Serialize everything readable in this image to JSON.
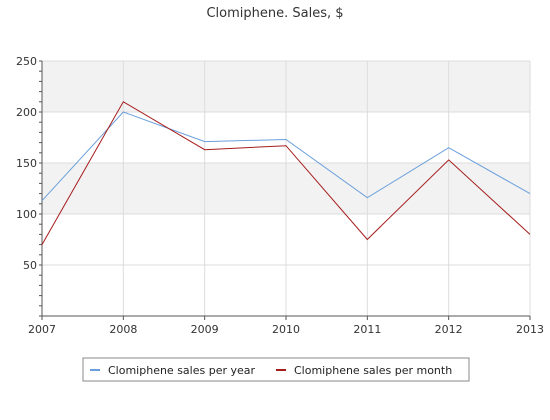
{
  "chart_data": {
    "type": "line",
    "title": "Clomiphene. Sales, $",
    "xlabel": "",
    "ylabel": "",
    "categories": [
      "2007",
      "2008",
      "2009",
      "2010",
      "2011",
      "2012",
      "2013"
    ],
    "ylim": [
      0,
      250
    ],
    "yticks": [
      "50",
      "100",
      "150",
      "200",
      "250"
    ],
    "grid": true,
    "legend_position": "bottom-center",
    "series": [
      {
        "name": "Clomiphene sales per year",
        "color": "#6a9fdb",
        "values": [
          113,
          200,
          171,
          173,
          116,
          165,
          120
        ]
      },
      {
        "name": "Clomiphene sales per month",
        "color": "#a51c1c",
        "values": [
          70,
          210,
          163,
          167,
          75,
          153,
          80
        ]
      }
    ]
  }
}
